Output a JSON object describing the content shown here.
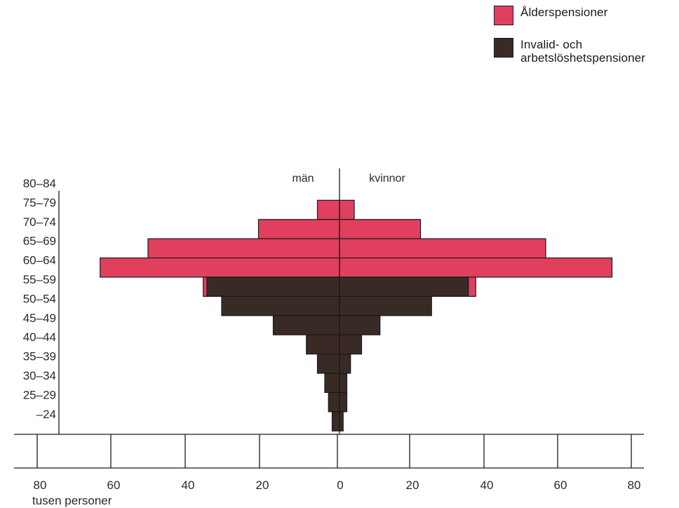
{
  "chart_data": {
    "type": "bar",
    "orientation": "horizontal",
    "layout": "population-pyramid",
    "xlabel": "tusen personer",
    "xlim": [
      -80,
      80
    ],
    "x_ticks": [
      -80,
      -60,
      -40,
      -20,
      0,
      20,
      40,
      60,
      80
    ],
    "x_tick_labels": [
      "80",
      "60",
      "40",
      "20",
      "0",
      "20",
      "40",
      "60",
      "80"
    ],
    "side_labels": {
      "left": "män",
      "right": "kvinnor"
    },
    "categories": [
      "80–84",
      "75–79",
      "70–74",
      "65–69",
      "60–64",
      "55–59",
      "50–54",
      "45–49",
      "40–44",
      "35–39",
      "30–34",
      "25–29",
      "–24"
    ],
    "series": [
      {
        "name": "Ålderspensioner",
        "color": "#e0405e",
        "men": [
          0,
          6,
          22,
          52,
          65,
          37,
          0,
          0,
          0,
          0,
          0,
          0,
          0
        ],
        "women": [
          0,
          4,
          22,
          56,
          74,
          37,
          0,
          0,
          0,
          0,
          0,
          0,
          0
        ]
      },
      {
        "name": "Invalid- och arbetslöshetspensioner",
        "color": "#3a2a26",
        "men": [
          0,
          0,
          0,
          0,
          0,
          36,
          32,
          18,
          9,
          6,
          4,
          3,
          2
        ],
        "women": [
          0,
          0,
          0,
          0,
          0,
          35,
          25,
          11,
          6,
          3,
          2,
          2,
          1
        ]
      }
    ],
    "legend_position": "top-right",
    "grid": false
  },
  "legend": {
    "items": [
      {
        "label": "Ålderspensioner",
        "color": "#e0405e"
      },
      {
        "label": "Invalid- och arbetslöshetspensioner",
        "color": "#3a2a26"
      }
    ]
  }
}
